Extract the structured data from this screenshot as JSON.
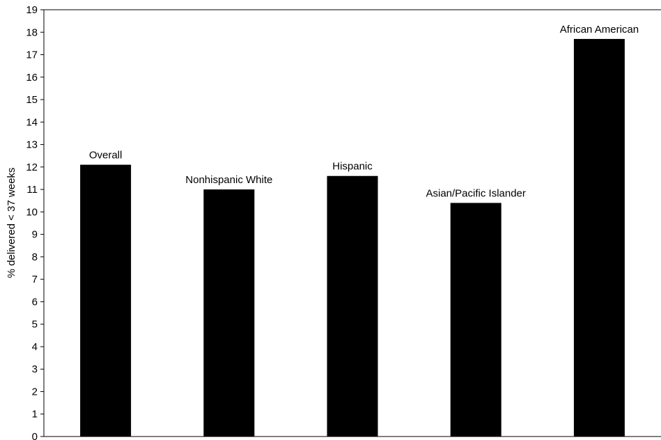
{
  "chart_data": {
    "type": "bar",
    "categories": [
      "Overall",
      "Nonhispanic White",
      "Hispanic",
      "Asian/Pacific Islander",
      "African American"
    ],
    "values": [
      12.1,
      11.0,
      11.6,
      10.4,
      17.7
    ],
    "title": "",
    "xlabel": "",
    "ylabel": "% delivered < 37 weeks",
    "ylim": [
      0,
      19
    ],
    "yticks": [
      "0",
      "1",
      "2",
      "3",
      "4",
      "5",
      "6",
      "7",
      "8",
      "9",
      "10",
      "11",
      "12",
      "13",
      "14",
      "15",
      "16",
      "17",
      "18",
      "19"
    ],
    "grid": false,
    "legend": "none",
    "bar_color": "#000000"
  }
}
